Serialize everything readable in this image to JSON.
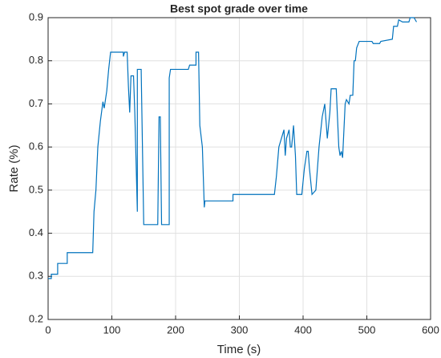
{
  "chart_data": {
    "type": "line",
    "title": "Best spot grade over time",
    "x_label": "Time (s)",
    "y_label": "Rate (%)",
    "xlim": [
      0,
      600
    ],
    "xticks": [
      0,
      100,
      200,
      300,
      400,
      500,
      600
    ],
    "ylim": [
      0.2,
      0.9
    ],
    "yticks": [
      0.2,
      0.3,
      0.4,
      0.5,
      0.6,
      0.7,
      0.8,
      0.9
    ],
    "grid": true,
    "series": [
      {
        "color": "#0072bd",
        "x": [
          0,
          5,
          5,
          15,
          15,
          30,
          30,
          70,
          72,
          75,
          78,
          82,
          86,
          88,
          92,
          95,
          98,
          118,
          118,
          120,
          124,
          126,
          128,
          130,
          134,
          136,
          140,
          140,
          146,
          150,
          172,
          174,
          176,
          178,
          190,
          190,
          192,
          220,
          222,
          232,
          232,
          236,
          238,
          242,
          245,
          246,
          290,
          290,
          355,
          358,
          362,
          366,
          370,
          372,
          374,
          378,
          380,
          382,
          385,
          388,
          390,
          398,
          402,
          406,
          408,
          410,
          414,
          420,
          425,
          430,
          434,
          438,
          442,
          444,
          452,
          456,
          458,
          460,
          462,
          466,
          468,
          472,
          474,
          478,
          480,
          482,
          484,
          488,
          508,
          510,
          520,
          522,
          540,
          542,
          548,
          550,
          556,
          566,
          568,
          574,
          578
        ],
        "values": [
          0.295,
          0.295,
          0.305,
          0.305,
          0.33,
          0.33,
          0.355,
          0.355,
          0.45,
          0.5,
          0.6,
          0.66,
          0.705,
          0.69,
          0.73,
          0.78,
          0.82,
          0.82,
          0.81,
          0.82,
          0.82,
          0.74,
          0.68,
          0.765,
          0.765,
          0.68,
          0.45,
          0.78,
          0.78,
          0.42,
          0.42,
          0.67,
          0.67,
          0.42,
          0.42,
          0.76,
          0.78,
          0.78,
          0.79,
          0.79,
          0.82,
          0.82,
          0.65,
          0.6,
          0.46,
          0.475,
          0.475,
          0.49,
          0.49,
          0.53,
          0.6,
          0.62,
          0.64,
          0.58,
          0.62,
          0.64,
          0.6,
          0.6,
          0.65,
          0.58,
          0.49,
          0.49,
          0.55,
          0.59,
          0.59,
          0.55,
          0.49,
          0.5,
          0.6,
          0.67,
          0.7,
          0.62,
          0.68,
          0.735,
          0.735,
          0.6,
          0.58,
          0.59,
          0.575,
          0.7,
          0.71,
          0.7,
          0.72,
          0.72,
          0.8,
          0.8,
          0.83,
          0.845,
          0.845,
          0.84,
          0.84,
          0.845,
          0.85,
          0.88,
          0.88,
          0.895,
          0.89,
          0.89,
          0.9,
          0.9,
          0.89
        ]
      }
    ]
  }
}
